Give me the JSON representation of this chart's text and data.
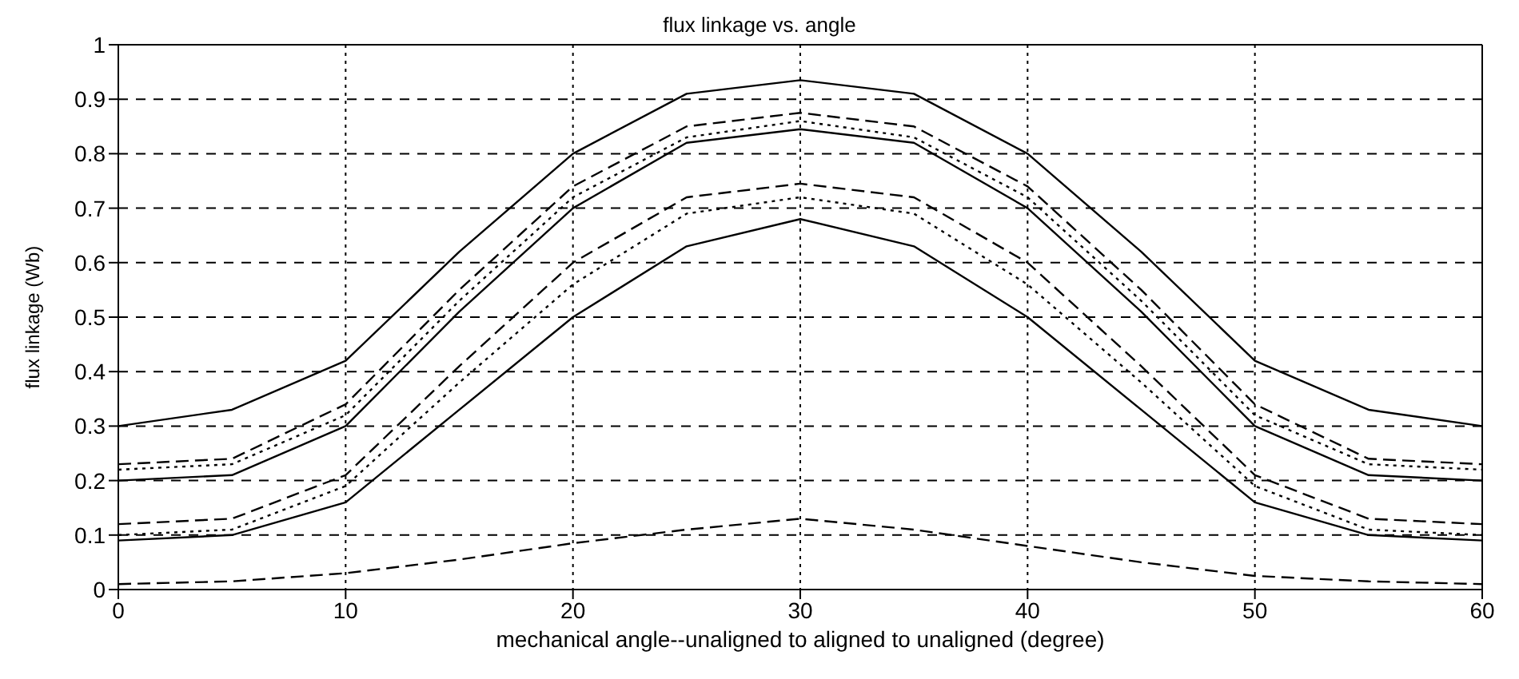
{
  "chart_data": {
    "type": "line",
    "title": "flux linkage vs. angle",
    "xlabel": "mechanical angle--unaligned to aligned to unaligned (degree)",
    "ylabel": "flux linkage (Wb)",
    "x": [
      0,
      5,
      10,
      15,
      20,
      25,
      30,
      35,
      40,
      45,
      50,
      55,
      60
    ],
    "series": [
      {
        "color": "#000000",
        "line_style": "solid",
        "values": [
          0.3,
          0.33,
          0.42,
          0.62,
          0.8,
          0.91,
          0.935,
          0.91,
          0.8,
          0.62,
          0.42,
          0.33,
          0.3
        ]
      },
      {
        "color": "#000000",
        "line_style": "dashed",
        "values": [
          0.23,
          0.24,
          0.34,
          0.55,
          0.74,
          0.85,
          0.875,
          0.85,
          0.74,
          0.55,
          0.34,
          0.24,
          0.23
        ]
      },
      {
        "color": "#000000",
        "line_style": "dotted",
        "values": [
          0.22,
          0.23,
          0.32,
          0.53,
          0.72,
          0.83,
          0.86,
          0.83,
          0.72,
          0.53,
          0.32,
          0.23,
          0.22
        ]
      },
      {
        "color": "#000000",
        "line_style": "solid",
        "values": [
          0.2,
          0.21,
          0.3,
          0.51,
          0.7,
          0.82,
          0.845,
          0.82,
          0.7,
          0.51,
          0.3,
          0.21,
          0.2
        ]
      },
      {
        "color": "#000000",
        "line_style": "dashed",
        "values": [
          0.12,
          0.13,
          0.21,
          0.41,
          0.6,
          0.72,
          0.745,
          0.72,
          0.6,
          0.41,
          0.21,
          0.13,
          0.12
        ]
      },
      {
        "color": "#000000",
        "line_style": "dotted",
        "values": [
          0.1,
          0.11,
          0.19,
          0.38,
          0.56,
          0.69,
          0.72,
          0.69,
          0.56,
          0.38,
          0.19,
          0.11,
          0.1
        ]
      },
      {
        "color": "#000000",
        "line_style": "solid",
        "values": [
          0.09,
          0.1,
          0.16,
          0.33,
          0.5,
          0.63,
          0.68,
          0.63,
          0.5,
          0.33,
          0.16,
          0.1,
          0.09
        ]
      },
      {
        "color": "#000000",
        "line_style": "dashed",
        "values": [
          0.01,
          0.015,
          0.03,
          0.055,
          0.085,
          0.11,
          0.13,
          0.11,
          0.08,
          0.05,
          0.025,
          0.015,
          0.01
        ]
      }
    ],
    "xlim": [
      0,
      60
    ],
    "xticks": [
      0,
      10,
      20,
      30,
      40,
      50,
      60
    ],
    "ylim": [
      0,
      1
    ],
    "yticks": [
      0,
      0.1,
      0.2,
      0.3,
      0.4,
      0.5,
      0.6,
      0.7,
      0.8,
      0.9,
      1
    ],
    "grid": true
  }
}
